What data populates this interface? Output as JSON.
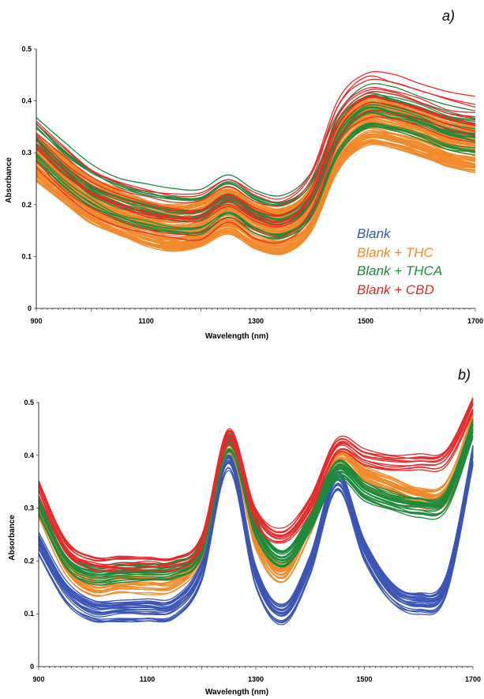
{
  "chart_data": [
    {
      "type": "line",
      "panel_label": "a)",
      "xlabel": "Wavelength (nm)",
      "ylabel": "Absorbance",
      "xlim": [
        900,
        1700
      ],
      "ylim": [
        0,
        0.5
      ],
      "xticks": [
        900,
        1100,
        1300,
        1500,
        1700
      ],
      "yticks": [
        0,
        0.1,
        0.2,
        0.3,
        0.4,
        0.5
      ],
      "x": [
        900,
        950,
        1000,
        1050,
        1100,
        1150,
        1200,
        1250,
        1300,
        1350,
        1400,
        1450,
        1500,
        1550,
        1600,
        1650,
        1700
      ],
      "series": [
        {
          "name": "Blank",
          "color": "#3a55b4",
          "count": 0,
          "values": [
            0.3,
            0.25,
            0.21,
            0.19,
            0.17,
            0.16,
            0.17,
            0.2,
            0.16,
            0.15,
            0.2,
            0.33,
            0.38,
            0.37,
            0.35,
            0.33,
            0.32
          ]
        },
        {
          "name": "Blank + THC",
          "color": "#f28a2a",
          "count": 90,
          "values": [
            0.29,
            0.25,
            0.21,
            0.185,
            0.165,
            0.155,
            0.165,
            0.19,
            0.16,
            0.15,
            0.19,
            0.31,
            0.36,
            0.355,
            0.34,
            0.32,
            0.31
          ]
        },
        {
          "name": "Blank + THCA",
          "color": "#1e8a3c",
          "count": 22,
          "values": [
            0.33,
            0.28,
            0.24,
            0.215,
            0.2,
            0.19,
            0.19,
            0.22,
            0.19,
            0.18,
            0.22,
            0.34,
            0.39,
            0.385,
            0.37,
            0.35,
            0.34
          ]
        },
        {
          "name": "Blank + CBD",
          "color": "#e62a2a",
          "count": 12,
          "values": [
            0.32,
            0.27,
            0.23,
            0.205,
            0.19,
            0.18,
            0.18,
            0.21,
            0.18,
            0.17,
            0.22,
            0.36,
            0.41,
            0.405,
            0.39,
            0.37,
            0.36
          ]
        }
      ],
      "legend": {
        "placement": "bottom-right"
      }
    },
    {
      "type": "line",
      "panel_label": "b)",
      "xlabel": "Wavelength (nm)",
      "ylabel": "Absorbance",
      "xlim": [
        900,
        1700
      ],
      "ylim": [
        0,
        0.5
      ],
      "xticks": [
        900,
        1100,
        1300,
        1500,
        1700
      ],
      "yticks": [
        0,
        0.1,
        0.2,
        0.3,
        0.4,
        0.5
      ],
      "x": [
        900,
        950,
        1000,
        1050,
        1100,
        1150,
        1200,
        1250,
        1300,
        1350,
        1400,
        1450,
        1500,
        1550,
        1600,
        1650,
        1700
      ],
      "series": [
        {
          "name": "Blank",
          "color": "#3a55b4",
          "count": 24,
          "values": [
            0.23,
            0.14,
            0.105,
            0.105,
            0.105,
            0.11,
            0.18,
            0.39,
            0.17,
            0.1,
            0.19,
            0.35,
            0.22,
            0.14,
            0.12,
            0.15,
            0.4
          ]
        },
        {
          "name": "Blank + THC",
          "color": "#f28a2a",
          "count": 24,
          "values": [
            0.3,
            0.19,
            0.15,
            0.155,
            0.155,
            0.16,
            0.22,
            0.42,
            0.24,
            0.175,
            0.27,
            0.39,
            0.36,
            0.34,
            0.32,
            0.33,
            0.46
          ]
        },
        {
          "name": "Blank + THCA",
          "color": "#1e8a3c",
          "count": 24,
          "values": [
            0.3,
            0.2,
            0.17,
            0.175,
            0.175,
            0.18,
            0.22,
            0.42,
            0.26,
            0.2,
            0.27,
            0.37,
            0.33,
            0.31,
            0.3,
            0.31,
            0.45
          ]
        },
        {
          "name": "Blank + CBD",
          "color": "#e62a2a",
          "count": 12,
          "values": [
            0.33,
            0.22,
            0.19,
            0.19,
            0.19,
            0.19,
            0.23,
            0.43,
            0.28,
            0.24,
            0.3,
            0.41,
            0.39,
            0.38,
            0.38,
            0.39,
            0.49
          ]
        }
      ]
    }
  ],
  "legend_labels": [
    "Blank",
    "Blank + THC",
    "Blank + THCA",
    "Blank + CBD"
  ]
}
